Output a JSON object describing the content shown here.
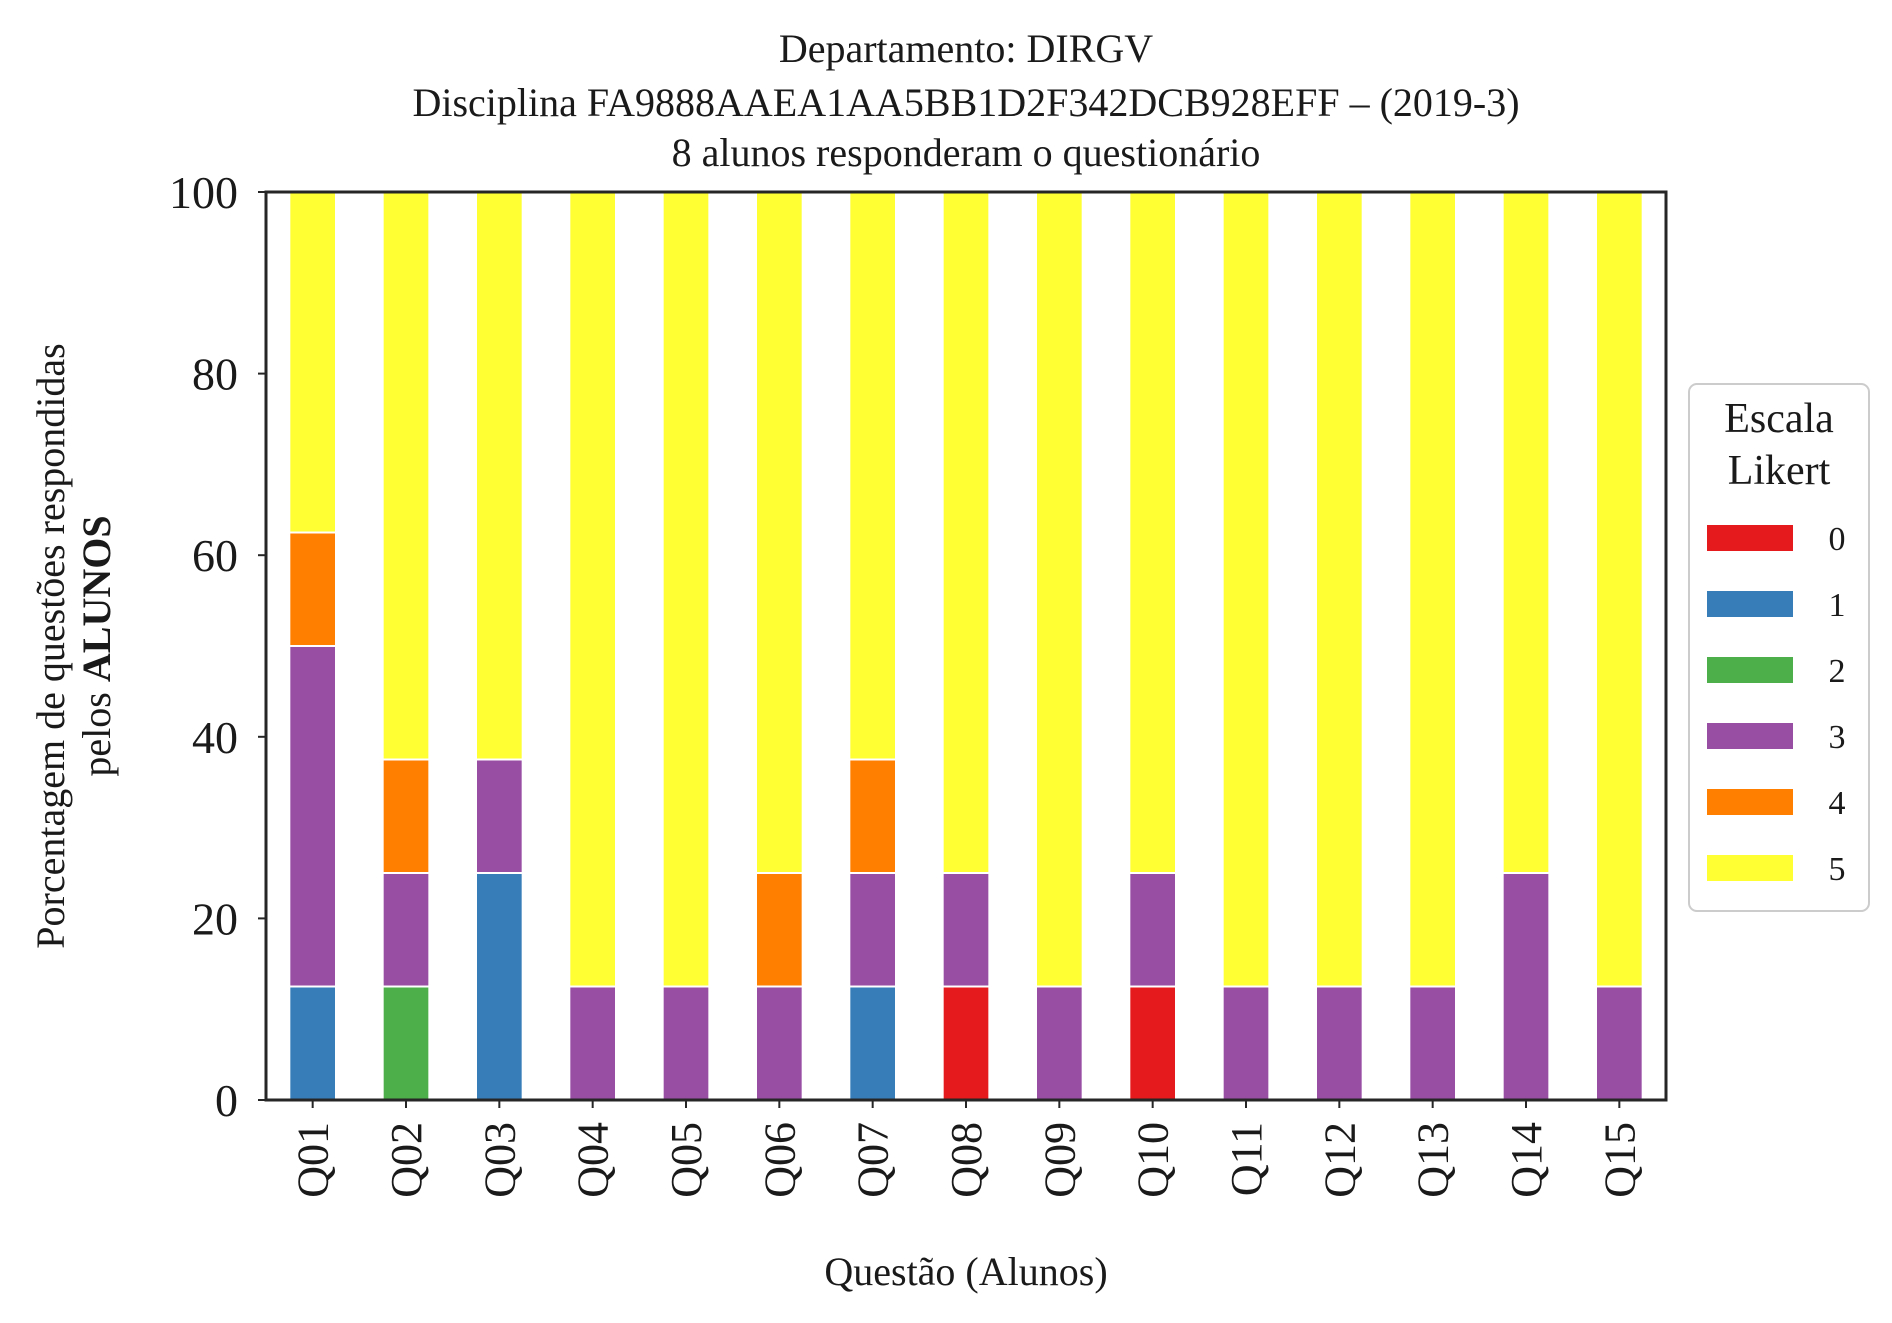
{
  "chart_data": {
    "type": "bar",
    "stacked": true,
    "title_lines": [
      "Departamento: DIRGV",
      "Disciplina FA9888AAEA1AA5BB1D2F342DCB928EFF – (2019-3)",
      "8 alunos responderam o questionário"
    ],
    "xlabel": "Questão (Alunos)",
    "ylabel_line1": "Porcentagem de questões respondidas",
    "ylabel_line2_prefix": "pelos ",
    "ylabel_line2_bold": "ALUNOS",
    "ylim": [
      0,
      100
    ],
    "yticks": [
      "0",
      "20",
      "40",
      "60",
      "80",
      "100"
    ],
    "grid": false,
    "legend": {
      "title_lines": [
        "Escala",
        "Likert"
      ],
      "placement": "right"
    },
    "categories": [
      "Q01",
      "Q02",
      "Q03",
      "Q04",
      "Q05",
      "Q06",
      "Q07",
      "Q08",
      "Q09",
      "Q10",
      "Q11",
      "Q12",
      "Q13",
      "Q14",
      "Q15"
    ],
    "series": [
      {
        "name": "0",
        "color": "#e41a1c",
        "values": [
          0,
          0,
          0,
          0,
          0,
          0,
          0,
          12.5,
          0,
          12.5,
          0,
          0,
          0,
          0,
          0
        ]
      },
      {
        "name": "1",
        "color": "#377eb8",
        "values": [
          12.5,
          0,
          25,
          0,
          0,
          0,
          12.5,
          0,
          0,
          0,
          0,
          0,
          0,
          0,
          0
        ]
      },
      {
        "name": "2",
        "color": "#4daf4a",
        "values": [
          0,
          12.5,
          0,
          0,
          0,
          0,
          0,
          0,
          0,
          0,
          0,
          0,
          0,
          0,
          0
        ]
      },
      {
        "name": "3",
        "color": "#984ea3",
        "values": [
          37.5,
          12.5,
          12.5,
          12.5,
          12.5,
          12.5,
          12.5,
          12.5,
          12.5,
          12.5,
          12.5,
          12.5,
          12.5,
          25,
          12.5
        ]
      },
      {
        "name": "4",
        "color": "#ff7f00",
        "values": [
          12.5,
          12.5,
          0,
          0,
          0,
          12.5,
          12.5,
          0,
          0,
          0,
          0,
          0,
          0,
          0,
          0
        ]
      },
      {
        "name": "5",
        "color": "#ffff33",
        "values": [
          37.5,
          62.5,
          62.5,
          87.5,
          87.5,
          75,
          62.5,
          75,
          87.5,
          75,
          87.5,
          87.5,
          87.5,
          75,
          87.5
        ]
      }
    ]
  }
}
